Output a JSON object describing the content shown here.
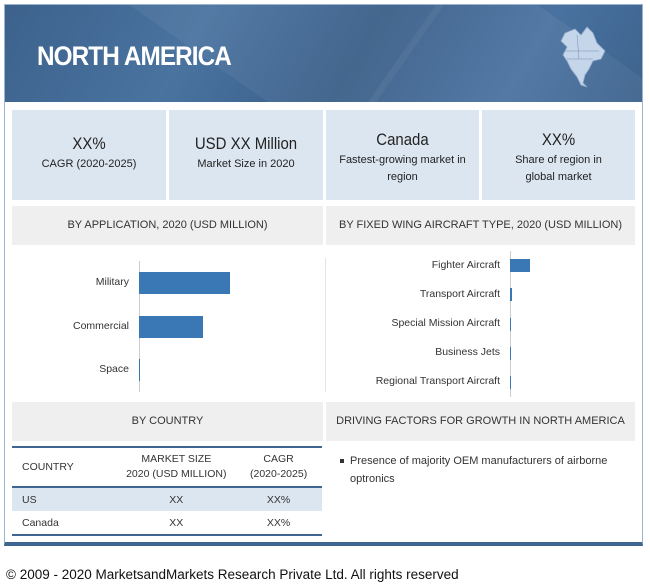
{
  "header": {
    "title": "NORTH AMERICA",
    "map_icon": "north-america-map-icon"
  },
  "kpis": [
    {
      "value": "XX%",
      "label": "CAGR (2020-2025)"
    },
    {
      "value": "USD XX Million",
      "label": "Market Size in 2020"
    },
    {
      "value": "Canada",
      "label": "Fastest-growing market in region"
    },
    {
      "value": "XX%",
      "label": "Share of region in global market"
    }
  ],
  "sections": {
    "application": "BY APPLICATION,  2020 (USD MILLION)",
    "fixed_wing": "BY FIXED WING AIRCRAFT TYPE, 2020 (USD MILLION)",
    "country": "BY COUNTRY",
    "drivers": "DRIVING FACTORS FOR GROWTH IN NORTH AMERICA"
  },
  "chart_data": [
    {
      "type": "bar",
      "orientation": "horizontal",
      "title": "BY APPLICATION,  2020 (USD MILLION)",
      "categories": [
        "Military",
        "Commercial",
        "Space"
      ],
      "values": [
        92,
        65,
        1
      ],
      "xlim": [
        0,
        100
      ],
      "color": "#3a77b5"
    },
    {
      "type": "bar",
      "orientation": "horizontal",
      "title": "BY FIXED WING AIRCRAFT TYPE, 2020 (USD MILLION)",
      "categories": [
        "Fighter Aircraft",
        "Transport Aircraft",
        "Special Mission Aircraft",
        "Business Jets",
        "Regional Transport Aircraft"
      ],
      "values": [
        20,
        2,
        0.5,
        0.5,
        0.5
      ],
      "xlim": [
        0,
        100
      ],
      "color": "#3a77b5"
    }
  ],
  "table": {
    "headers": [
      "COUNTRY",
      "MARKET SIZE\n2020 (USD MILLION)",
      "CAGR\n(2020-2025)"
    ],
    "header_lines": [
      [
        "COUNTRY"
      ],
      [
        "MARKET SIZE",
        "2020 (USD MILLION)"
      ],
      [
        "CAGR",
        "(2020-2025)"
      ]
    ],
    "rows": [
      [
        "US",
        "XX",
        "XX%"
      ],
      [
        "Canada",
        "XX",
        "XX%"
      ]
    ]
  },
  "drivers": [
    "Presence of majority OEM manufacturers of airborne optronics"
  ],
  "footer": "© 2009 - 2020 MarketsandMarkets Research Private Ltd. All rights reserved"
}
